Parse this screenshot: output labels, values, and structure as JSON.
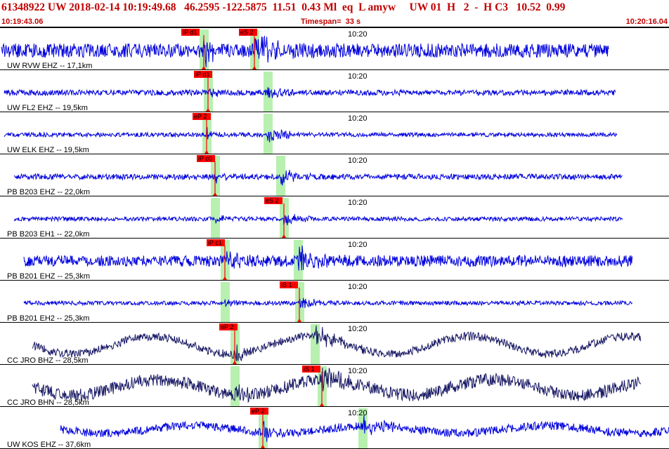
{
  "header": {
    "title": "61348922 UW 2018-02-14 10:19:49.68   46.2595 -122.5875  11.51  0.43 Ml  eq  L amyw     UW 01  H   2  -  H C3   10.52  0.99",
    "start_time": "10:19:43.06",
    "timespan": "Timespan=  33 s",
    "end_time": "10:20:16.04"
  },
  "colors": {
    "trace_blue": "#0000dd",
    "trace_dark": "#1a1a66",
    "pick_red": "#ff0000",
    "window_green": "#b8f0b0",
    "header_red": "#c00000"
  },
  "channels": [
    {
      "label": "UW RVW EHZ -- 17,1km",
      "time_label": "10:20",
      "style": "blue",
      "picks": [
        {
          "label": "iP d1",
          "kind": "P"
        },
        {
          "label": "eS 2",
          "kind": "S"
        }
      ]
    },
    {
      "label": "UW FL2 EHZ -- 19,5km",
      "time_label": "10:20",
      "style": "blue",
      "picks": [
        {
          "label": "iP d1",
          "kind": "P"
        }
      ]
    },
    {
      "label": "UW ELK EHZ -- 19,5km",
      "time_label": "10:20",
      "style": "blue",
      "picks": [
        {
          "label": "eP 2",
          "kind": "P"
        }
      ]
    },
    {
      "label": "PB B203 EHZ -- 22,0km",
      "time_label": "10:20",
      "style": "blue",
      "picks": [
        {
          "label": "iP c0",
          "kind": "P"
        }
      ]
    },
    {
      "label": "PB B203 EH1 -- 22,0km",
      "time_label": "10:20",
      "style": "blue",
      "picks": [
        {
          "label": "eS 2",
          "kind": "S"
        }
      ]
    },
    {
      "label": "PB B201 EHZ -- 25,3km",
      "time_label": "10:20",
      "style": "blue",
      "picks": [
        {
          "label": "iP c1",
          "kind": "P"
        }
      ]
    },
    {
      "label": "PB B201 EH2 -- 25,3km",
      "time_label": "10:20",
      "style": "blue",
      "picks": [
        {
          "label": "iS 1",
          "kind": "S"
        }
      ]
    },
    {
      "label": "CC JRO BHZ -- 28,5km",
      "time_label": "10:20",
      "style": "dark",
      "picks": [
        {
          "label": "eP 2",
          "kind": "P"
        }
      ]
    },
    {
      "label": "CC JRO BHN -- 28,5km",
      "time_label": "10:20",
      "style": "dark",
      "picks": [
        {
          "label": "iS 1",
          "kind": "S"
        }
      ]
    },
    {
      "label": "UW KOS EHZ -- 37,6km",
      "time_label": "10:20",
      "style": "blue",
      "picks": [
        {
          "label": "eP 2",
          "kind": "P"
        }
      ]
    }
  ]
}
